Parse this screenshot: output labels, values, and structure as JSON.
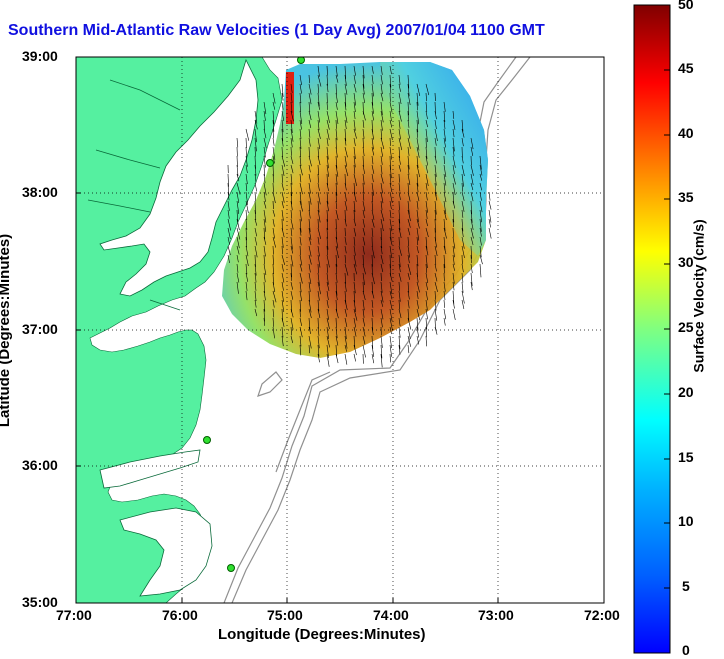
{
  "title": "Southern Mid-Atlantic Raw Velocities (1 Day Avg) 2007/01/04 1100 GMT",
  "map": {
    "xlabel": "Longitude (Degrees:Minutes)",
    "ylabel": "Latitude (Degrees:Minutes)",
    "lon_ticks": [
      "77:00",
      "76:00",
      "75:00",
      "74:00",
      "73:00",
      "72:00"
    ],
    "lat_ticks": [
      "39:00",
      "38:00",
      "37:00",
      "36:00",
      "35:00"
    ],
    "lon_range": [
      -77,
      -72
    ],
    "lat_range": [
      35,
      39
    ],
    "land_color": "#55f0a0",
    "grid": true
  },
  "colorbar": {
    "label": "Surface Velocity (cm/s)",
    "ticks": [
      "0",
      "5",
      "10",
      "15",
      "20",
      "25",
      "30",
      "35",
      "40",
      "45",
      "50"
    ],
    "range": [
      0,
      50
    ],
    "colormap": "jet"
  },
  "stations_icon": "green-circle-icon"
}
